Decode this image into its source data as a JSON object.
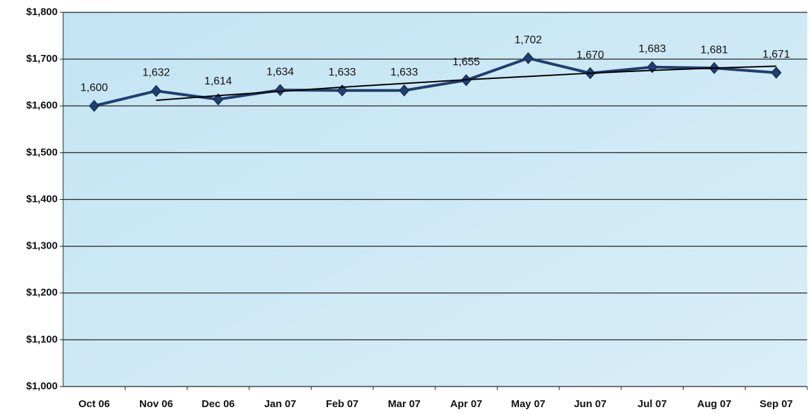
{
  "chart_data": {
    "type": "line",
    "categories": [
      "Oct 06",
      "Nov 06",
      "Dec 06",
      "Jan 07",
      "Feb 07",
      "Mar 07",
      "Apr 07",
      "May 07",
      "Jun 07",
      "Jul 07",
      "Aug 07",
      "Sep 07"
    ],
    "series": [
      {
        "color": "#1f3f6f",
        "values": [
          1600,
          1632,
          1614,
          1634,
          1633,
          1633,
          1655,
          1702,
          1670,
          1683,
          1681,
          1671
        ],
        "value_labels": [
          "1,600",
          "1,632",
          "1,614",
          "1,634",
          "1,633",
          "1,633",
          "1,655",
          "1,702",
          "1,670",
          "1,683",
          "1,681",
          "1,671"
        ]
      }
    ],
    "trendline": {
      "color": "#000000",
      "values": [
        null,
        1612,
        1622,
        1631,
        1640,
        1648,
        1656,
        1663,
        1670,
        1676,
        1681,
        1685
      ]
    },
    "ylim": [
      1000,
      1800
    ],
    "yticks": [
      {
        "value": 1000,
        "label": "$1,000"
      },
      {
        "value": 1100,
        "label": "$1,100"
      },
      {
        "value": 1200,
        "label": "$1,200"
      },
      {
        "value": 1300,
        "label": "$1,300"
      },
      {
        "value": 1400,
        "label": "$1,400"
      },
      {
        "value": 1500,
        "label": "$1,500"
      },
      {
        "value": 1600,
        "label": "$1,600"
      },
      {
        "value": 1700,
        "label": "$1,700"
      },
      {
        "value": 1800,
        "label": "$1,800"
      }
    ],
    "grid": true
  }
}
